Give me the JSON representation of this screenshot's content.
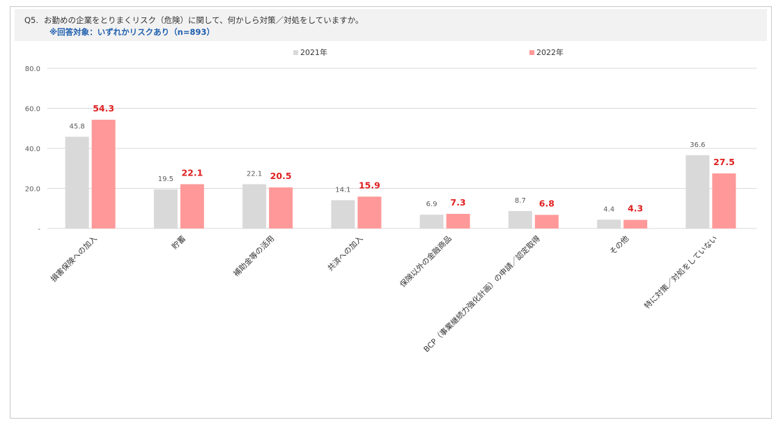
{
  "question": {
    "number": "Q5.",
    "text": "お勤めの企業をとりまくリスク（危険）に関して、何かしら対策／対処をしていますか。",
    "note": "※回答対象：いずれかリスクあり（n=893）"
  },
  "colors": {
    "series_2021": "#d9d9d9",
    "series_2022": "#ff9999",
    "label_2021": "#595959",
    "label_2022": "#e02020",
    "grid": "#d9d9d9"
  },
  "chart_data": {
    "type": "bar",
    "legend_position": "top-center",
    "grid": true,
    "ylim": [
      0,
      80
    ],
    "yticks": [
      "-",
      "20.0",
      "40.0",
      "60.0",
      "80.0"
    ],
    "categories": [
      "損害保険への加入",
      "貯蓄",
      "補助金等の活用",
      "共済への加入",
      "保険以外の金融商品",
      "BCP（事業継続力強化計画）の申請／認定取得",
      "その他",
      "特に対策／対処をしていない"
    ],
    "series": [
      {
        "name": "2021年",
        "values": [
          45.8,
          19.5,
          22.1,
          14.1,
          6.9,
          8.7,
          4.4,
          36.6
        ],
        "labels": [
          "45.8",
          "19.5",
          "22.1",
          "14.1",
          "6.9",
          "8.7",
          "4.4",
          "36.6"
        ]
      },
      {
        "name": "2022年",
        "values": [
          54.3,
          22.1,
          20.5,
          15.9,
          7.3,
          6.8,
          4.3,
          27.5
        ],
        "labels": [
          "54.3",
          "22.1",
          "20.5",
          "15.9",
          "7.3",
          "6.8",
          "4.3",
          "27.5"
        ]
      }
    ]
  }
}
